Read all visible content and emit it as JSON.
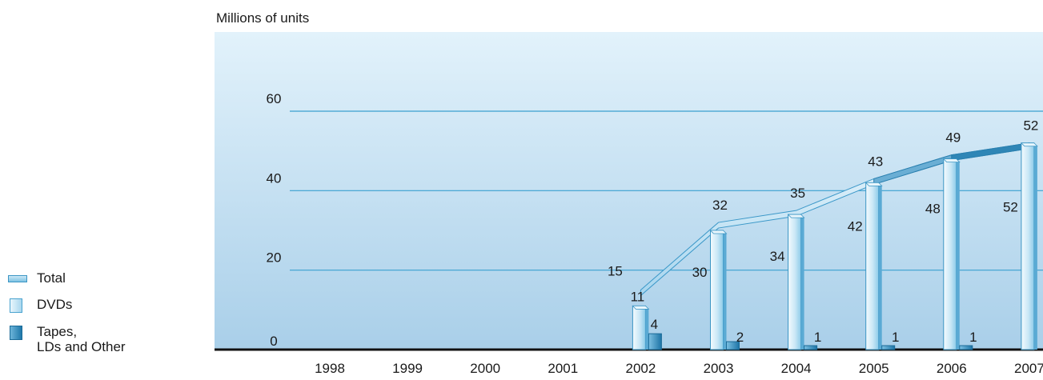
{
  "chart_data": {
    "type": "bar",
    "ylabel": "Millions of units",
    "categories": [
      "1998",
      "1999",
      "2000",
      "2001",
      "2002",
      "2003",
      "2004",
      "2005",
      "2006",
      "2007"
    ],
    "ylim": [
      0,
      60
    ],
    "yticks": [
      0,
      20,
      40,
      60
    ],
    "grid": true,
    "legend_position": "left",
    "series": [
      {
        "name": "Total",
        "type": "line",
        "values": [
          null,
          null,
          null,
          null,
          15,
          32,
          35,
          43,
          49,
          52
        ],
        "labels": [
          "",
          "",
          "",
          "",
          "15",
          "32",
          "35",
          "43",
          "49",
          "52"
        ],
        "color": "#7dc2e3"
      },
      {
        "name": "DVDs",
        "type": "bar",
        "values": [
          null,
          null,
          null,
          null,
          11,
          30,
          34,
          42,
          48,
          52
        ],
        "labels": [
          "",
          "",
          "",
          "",
          "11",
          "30",
          "34",
          "42",
          "48",
          "52"
        ],
        "color": "#bfe2f4"
      },
      {
        "name": "Tapes, LDs and Other",
        "type": "bar",
        "values": [
          null,
          null,
          null,
          null,
          4,
          2,
          1,
          1,
          1,
          0
        ],
        "labels": [
          "",
          "",
          "",
          "",
          "4",
          "2",
          "1",
          "1",
          "1",
          "0"
        ],
        "color": "#2a86b8"
      }
    ]
  },
  "legend": {
    "total_label": "Total",
    "dvd_label": "DVDs",
    "tape_line1": "Tapes,",
    "tape_line2": "LDs and Other"
  },
  "colors": {
    "background_top": "#e2f2fb",
    "background_bottom": "#a9cfe9",
    "gridline": "#3aa0cf",
    "baseline": "#111111"
  }
}
